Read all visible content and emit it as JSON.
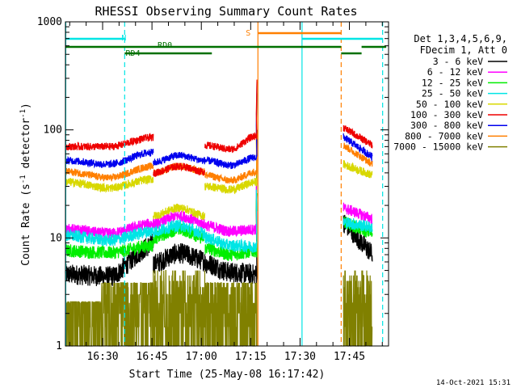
{
  "chart_data": {
    "type": "line",
    "title": "RHESSI Observing Summary Count Rates",
    "xlabel": "Start Time (25-May-08 16:17:42)",
    "ylabel": "Count Rate (s^-1 detector^-1)",
    "ylabel_main": "Count Rate (s",
    "ylabel_sup1": "-1",
    "ylabel_mid": " detector",
    "ylabel_sup2": "-1",
    "ylabel_end": ")",
    "y_scale": "log",
    "ylim": [
      1,
      1000
    ],
    "yticks": [
      "1",
      "10",
      "100",
      "1000"
    ],
    "xlim_minutes": [
      1.0,
      99.2
    ],
    "xtick_labels": [
      "16:30",
      "16:45",
      "17:00",
      "17:15",
      "17:30",
      "17:45"
    ],
    "xtick_minutes": [
      12.3,
      27.3,
      42.3,
      57.3,
      72.3,
      87.3
    ],
    "timestamp": "14-Oct-2021 15:31",
    "legend_header": [
      "Det 1,3,4,5,6,9,",
      "FDecim 1, Att 0"
    ],
    "legend_position": "right",
    "series": [
      {
        "name": "3 - 6 keV",
        "color": "#000000"
      },
      {
        "name": "6 - 12 keV",
        "color": "#ff00ff"
      },
      {
        "name": "12 - 25 keV",
        "color": "#00ee00"
      },
      {
        "name": "25 - 50 keV",
        "color": "#00e5e5"
      },
      {
        "name": "50 - 100 keV",
        "color": "#d8d800"
      },
      {
        "name": "100 - 300 keV",
        "color": "#ee0000"
      },
      {
        "name": "300 - 800 keV",
        "color": "#0000ee"
      },
      {
        "name": "800 - 7000 keV",
        "color": "#ff7f00"
      },
      {
        "name": "7000 - 15000 keV",
        "color": "#808000"
      }
    ],
    "annotations": {
      "night": {
        "label": "N",
        "color": "#00e5e5"
      },
      "saa": {
        "label": "S",
        "color": "#ff7f00"
      },
      "rd0": {
        "label": "RD0",
        "color": "#007000"
      },
      "rd4": {
        "label": "RD4",
        "color": "#007000"
      }
    }
  }
}
